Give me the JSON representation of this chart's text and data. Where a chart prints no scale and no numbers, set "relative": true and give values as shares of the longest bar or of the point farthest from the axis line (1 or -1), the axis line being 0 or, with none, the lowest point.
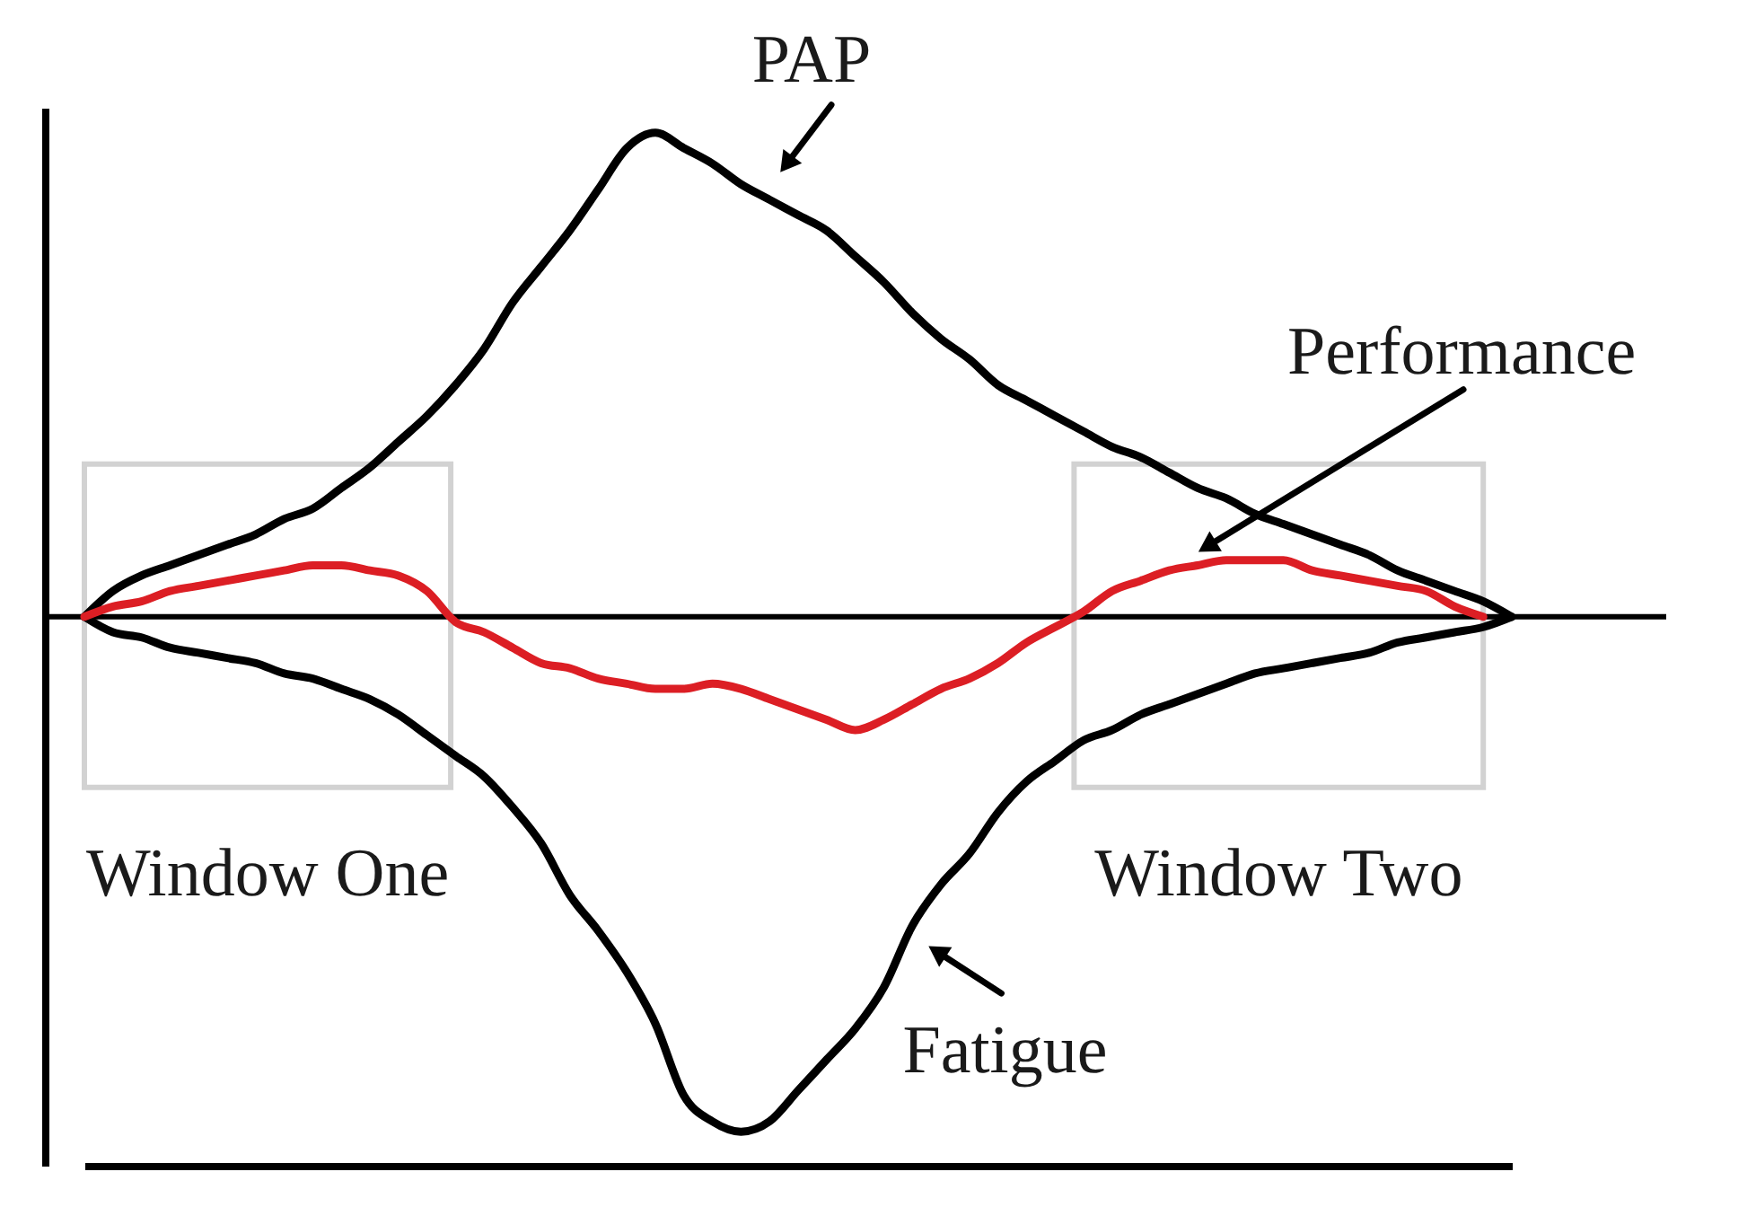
{
  "chart_data": {
    "type": "line",
    "relative": true,
    "categories": [
      null,
      null,
      null,
      null,
      null,
      null,
      null,
      null,
      null,
      null,
      null,
      null,
      null,
      null,
      null,
      null,
      null,
      null,
      null,
      null,
      null,
      null,
      null,
      null,
      null,
      null,
      null,
      null,
      null,
      null,
      null,
      null,
      null,
      null,
      null,
      null,
      null,
      null,
      null,
      null,
      null,
      null,
      null,
      null,
      null,
      null,
      null,
      null,
      null,
      null,
      null
    ],
    "series": [
      {
        "name": "PAP",
        "color": "#000000",
        "values": [
          0,
          0.05,
          0.08,
          0.1,
          0.12,
          0.14,
          0.16,
          0.19,
          0.21,
          0.25,
          0.29,
          0.34,
          0.39,
          0.45,
          0.52,
          0.61,
          0.68,
          0.75,
          0.83,
          0.91,
          0.94,
          0.91,
          0.88,
          0.84,
          0.81,
          0.78,
          0.75,
          0.7,
          0.65,
          0.59,
          0.54,
          0.5,
          0.45,
          0.42,
          0.39,
          0.36,
          0.33,
          0.31,
          0.28,
          0.25,
          0.23,
          0.2,
          0.18,
          0.16,
          0.14,
          0.12,
          0.09,
          0.07,
          0.05,
          0.03,
          0
        ]
      },
      {
        "name": "Fatigue",
        "color": "#000000",
        "values": [
          0,
          -0.03,
          -0.04,
          -0.06,
          -0.07,
          -0.08,
          -0.09,
          -0.11,
          -0.12,
          -0.14,
          -0.16,
          -0.19,
          -0.23,
          -0.27,
          -0.31,
          -0.37,
          -0.44,
          -0.54,
          -0.61,
          -0.69,
          -0.79,
          -0.93,
          -0.98,
          -1,
          -0.98,
          -0.92,
          -0.86,
          -0.8,
          -0.72,
          -0.6,
          -0.52,
          -0.46,
          -0.38,
          -0.32,
          -0.28,
          -0.24,
          -0.22,
          -0.19,
          -0.17,
          -0.15,
          -0.13,
          -0.11,
          -0.1,
          -0.09,
          -0.08,
          -0.07,
          -0.05,
          -0.04,
          -0.03,
          -0.02,
          0
        ]
      },
      {
        "name": "Performance",
        "color": "#dc1e24",
        "values": [
          0,
          0.02,
          0.03,
          0.05,
          0.06,
          0.07,
          0.08,
          0.09,
          0.1,
          0.1,
          0.09,
          0.08,
          0.05,
          -0.01,
          -0.03,
          -0.06,
          -0.09,
          -0.1,
          -0.12,
          -0.13,
          -0.14,
          -0.14,
          -0.13,
          -0.14,
          -0.16,
          -0.18,
          -0.2,
          -0.22,
          -0.2,
          -0.17,
          -0.14,
          -0.12,
          -0.09,
          -0.05,
          -0.02,
          0.01,
          0.05,
          0.07,
          0.09,
          0.1,
          0.11,
          0.11,
          0.11,
          0.09,
          0.08,
          0.07,
          0.06,
          0.05,
          0.02,
          0,
          null
        ]
      }
    ],
    "annotations": [
      "Window One",
      "Window Two"
    ]
  }
}
